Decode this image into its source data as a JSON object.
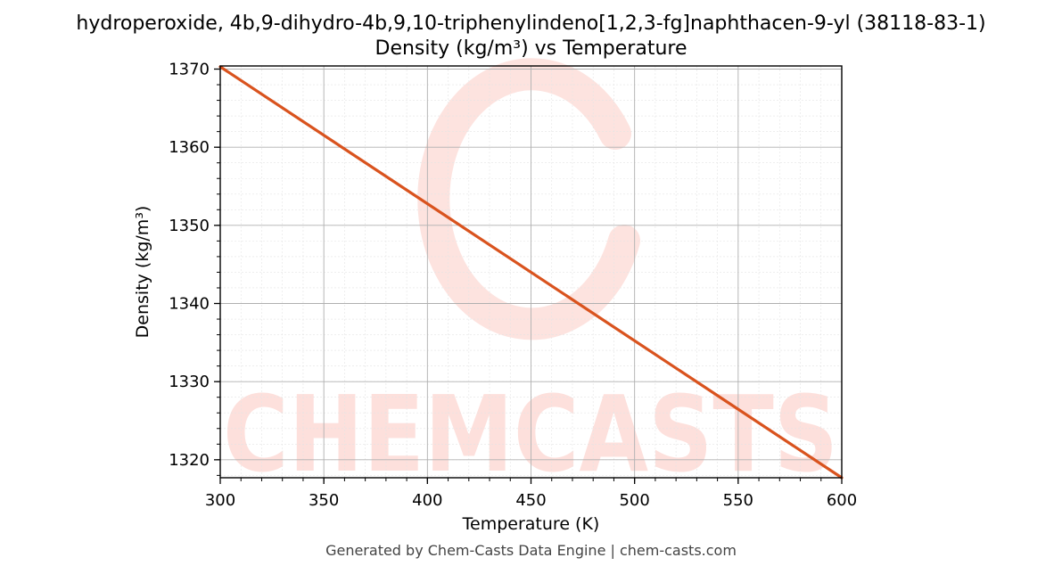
{
  "chart_data": {
    "type": "line",
    "title_line1": "hydroperoxide, 4b,9-dihydro-4b,9,10-triphenylindeno[1,2,3-fg]naphthacen-9-yl (38118-83-1)",
    "title_line2": "Density (kg/m³) vs Temperature",
    "xlabel": "Temperature (K)",
    "ylabel": "Density (kg/m³)",
    "xlim": [
      300,
      600
    ],
    "ylim": [
      1317.7,
      1370.4
    ],
    "xticks": [
      300,
      350,
      400,
      450,
      500,
      550,
      600
    ],
    "yticks": [
      1320,
      1330,
      1340,
      1350,
      1360,
      1370
    ],
    "grid": true,
    "series": [
      {
        "color": "#d9531e",
        "x": [
          300,
          600
        ],
        "y": [
          1370.3,
          1317.7
        ]
      }
    ]
  },
  "watermark": {
    "text": "CHEMCASTS",
    "color": "#fde0dc"
  },
  "footer": "Generated by Chem-Casts Data Engine | chem-casts.com"
}
